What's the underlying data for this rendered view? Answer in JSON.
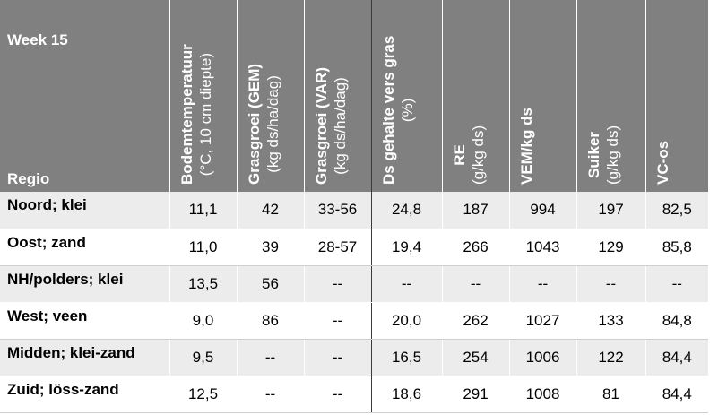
{
  "table": {
    "week_label": "Week 15",
    "region_label": "Regio",
    "columns": [
      {
        "title": "Bodemtemperatuur",
        "sub": "(°C, 10 cm diepte)"
      },
      {
        "title": "Grasgroei (GEM)",
        "sub": "(kg ds/ha/dag)"
      },
      {
        "title": "Grasgroei (VAR)",
        "sub": "(kg ds/ha/dag)"
      },
      {
        "title": "Ds gehalte vers gras",
        "sub": "(%)"
      },
      {
        "title": "RE",
        "sub": "(g/kg ds)"
      },
      {
        "title": "VEM/kg ds",
        "sub": ""
      },
      {
        "title": "Suiker",
        "sub": "(g/kg ds)"
      },
      {
        "title": "VC-os",
        "sub": ""
      }
    ],
    "rows": [
      {
        "region": "Noord; klei",
        "values": [
          "11,1",
          "42",
          "33-56",
          "24,8",
          "187",
          "994",
          "197",
          "82,5"
        ]
      },
      {
        "region": "Oost; zand",
        "values": [
          "11,0",
          "39",
          "28-57",
          "19,4",
          "266",
          "1043",
          "129",
          "85,8"
        ]
      },
      {
        "region": "NH/polders; klei",
        "values": [
          "13,5",
          "56",
          "--",
          "--",
          "--",
          "--",
          "--",
          "--"
        ]
      },
      {
        "region": "West; veen",
        "values": [
          "9,0",
          "86",
          "--",
          "20,0",
          "262",
          "1027",
          "133",
          "84,8"
        ]
      },
      {
        "region": "Midden; klei-zand",
        "values": [
          "9,5",
          "--",
          "--",
          "16,5",
          "254",
          "1006",
          "122",
          "84,4"
        ]
      },
      {
        "region": "Zuid; löss-zand",
        "values": [
          "12,5",
          "--",
          "--",
          "18,6",
          "291",
          "1008",
          "81",
          "84,4"
        ]
      }
    ]
  }
}
